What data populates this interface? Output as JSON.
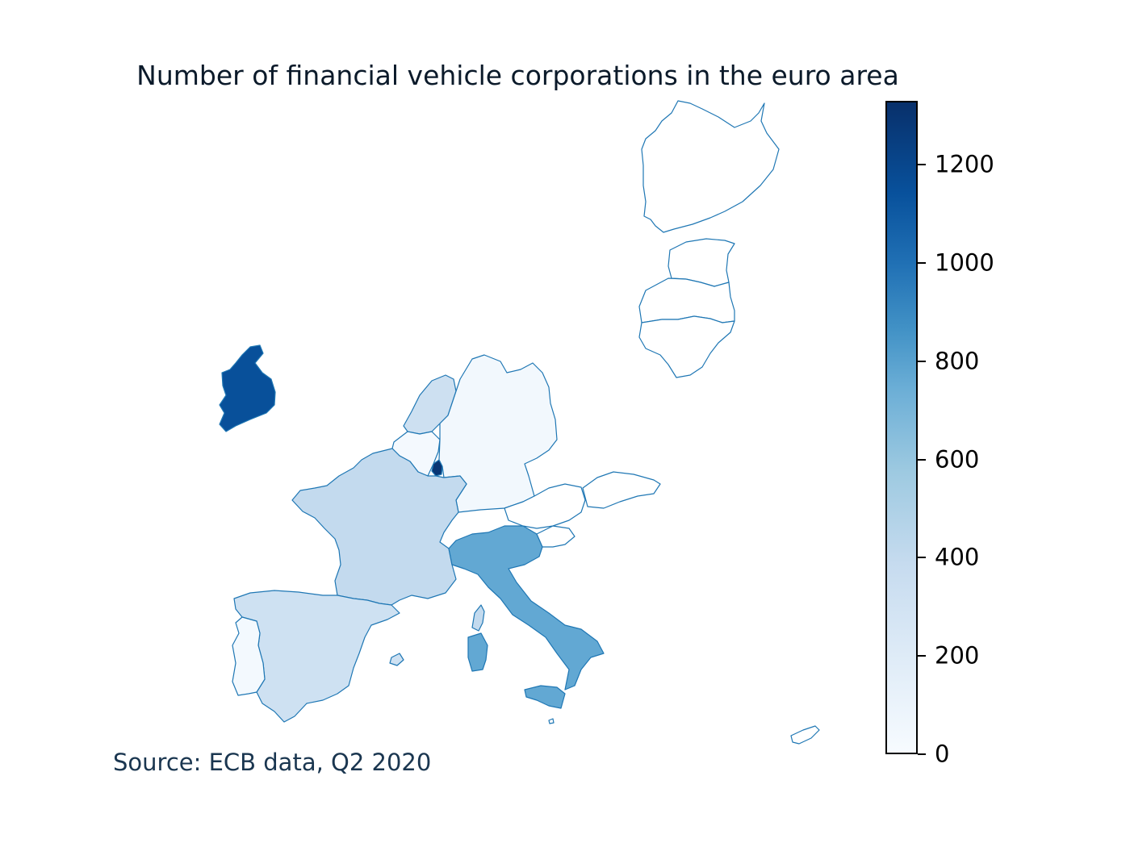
{
  "title": "Number of financial vehicle corporations in the euro area",
  "source": "Source: ECB data, Q2 2020",
  "colorbar": {
    "min": 0,
    "max": 1330,
    "colormap": "Blues",
    "ticks": [
      "0",
      "200",
      "400",
      "600",
      "800",
      "1000",
      "1200"
    ]
  },
  "map_data": {
    "type": "choropleth",
    "region": "euro area",
    "countries": [
      {
        "name": "Ireland",
        "value": 1150
      },
      {
        "name": "Luxembourg",
        "value": 1300
      },
      {
        "name": "Italy",
        "value": 770
      },
      {
        "name": "France",
        "value": 400
      },
      {
        "name": "Spain",
        "value": 320
      },
      {
        "name": "Netherlands",
        "value": 330
      },
      {
        "name": "Portugal",
        "value": 30
      },
      {
        "name": "Germany",
        "value": 40
      },
      {
        "name": "Belgium",
        "value": 20
      },
      {
        "name": "Austria",
        "value": 0
      },
      {
        "name": "Slovakia",
        "value": 0
      },
      {
        "name": "Slovenia",
        "value": 0
      },
      {
        "name": "Finland",
        "value": 0
      },
      {
        "name": "Estonia",
        "value": 0
      },
      {
        "name": "Latvia",
        "value": 0
      },
      {
        "name": "Lithuania",
        "value": 0
      },
      {
        "name": "Cyprus",
        "value": 0
      },
      {
        "name": "Malta",
        "value": 0
      },
      {
        "name": "Greece",
        "value": 0
      }
    ]
  }
}
